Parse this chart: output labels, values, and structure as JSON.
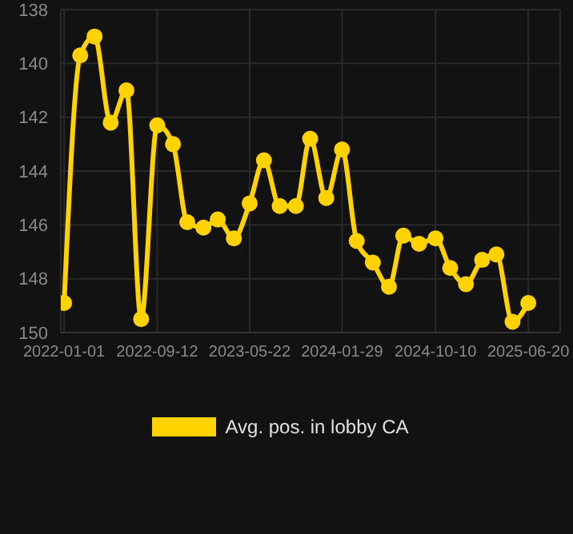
{
  "chart_data": {
    "type": "line",
    "x": [
      "2022-01-01",
      "2022-02-14",
      "2022-03-25",
      "2022-05-08",
      "2022-06-20",
      "2022-07-30",
      "2022-09-12",
      "2022-10-25",
      "2022-12-03",
      "2023-01-16",
      "2023-02-24",
      "2023-04-09",
      "2023-05-22",
      "2023-06-30",
      "2023-08-12",
      "2023-09-25",
      "2023-11-03",
      "2023-12-17",
      "2024-01-29",
      "2024-03-09",
      "2024-04-22",
      "2024-06-05",
      "2024-07-14",
      "2024-08-26",
      "2024-10-10",
      "2024-11-19",
      "2025-01-01",
      "2025-02-14",
      "2025-03-25",
      "2025-05-08",
      "2025-06-20"
    ],
    "series": [
      {
        "name": "Avg. pos. in lobby CA",
        "color": "#ffd200",
        "values": [
          148.9,
          139.7,
          139.0,
          142.2,
          141.0,
          149.5,
          142.3,
          143.0,
          145.9,
          146.1,
          145.8,
          146.5,
          145.2,
          143.6,
          145.3,
          145.3,
          142.8,
          145.0,
          143.2,
          146.6,
          147.4,
          148.3,
          146.4,
          146.7,
          146.5,
          147.6,
          148.2,
          147.3,
          147.1,
          149.6,
          148.9
        ]
      }
    ],
    "xlim": [
      "2021-12-23",
      "2025-09-15"
    ],
    "xticks": [
      "2022-01-01",
      "2022-09-12",
      "2023-05-22",
      "2024-01-29",
      "2024-10-10",
      "2025-06-20"
    ],
    "ylim": [
      150,
      138
    ],
    "yticks": [
      138,
      140,
      142,
      144,
      146,
      148,
      150
    ],
    "grid": true,
    "legend": "bottom",
    "marker": "circle",
    "line_style": "solid"
  }
}
